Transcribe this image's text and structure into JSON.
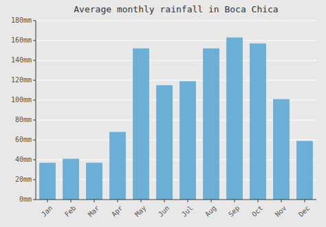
{
  "chart_data": {
    "type": "bar",
    "title": "Average monthly rainfall in Boca Chica",
    "categories": [
      "Jan",
      "Feb",
      "Mar",
      "Apr",
      "May",
      "Jun",
      "Jul",
      "Aug",
      "Sep",
      "Oct",
      "Nov",
      "Dec"
    ],
    "values": [
      37,
      41,
      37,
      68,
      152,
      115,
      119,
      152,
      163,
      157,
      101,
      59
    ],
    "color": "#6baed6",
    "ylim": [
      0,
      180
    ],
    "yticks": [
      {
        "value": 0,
        "label": "0mm"
      },
      {
        "value": 20,
        "label": "20mm"
      },
      {
        "value": 40,
        "label": "40mm"
      },
      {
        "value": 60,
        "label": "60mm"
      },
      {
        "value": 80,
        "label": "80mm"
      },
      {
        "value": 100,
        "label": "100mm"
      },
      {
        "value": 120,
        "label": "120mm"
      },
      {
        "value": 140,
        "label": "140mm"
      },
      {
        "value": 160,
        "label": "160mm"
      },
      {
        "value": 180,
        "label": "180mm"
      }
    ],
    "grid": true
  }
}
